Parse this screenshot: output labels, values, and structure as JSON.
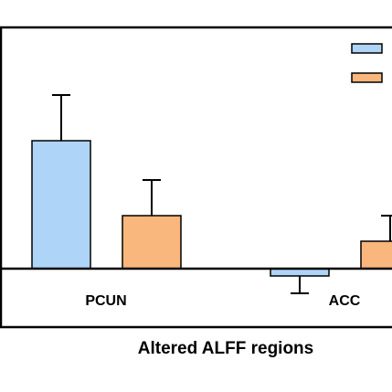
{
  "chart_data": {
    "type": "bar",
    "xlabel": "Altered ALFF regions",
    "categories": [
      "PCUN",
      "ACC"
    ],
    "series": [
      {
        "color": "#aed4f8",
        "values": [
          1.4,
          -0.08
        ],
        "errors": [
          0.5,
          0.19
        ]
      },
      {
        "color": "#f9b67d",
        "values": [
          0.58,
          0.3
        ],
        "errors": [
          0.39,
          0.28
        ]
      }
    ],
    "ylim": [
      -0.64,
      2.64
    ]
  }
}
